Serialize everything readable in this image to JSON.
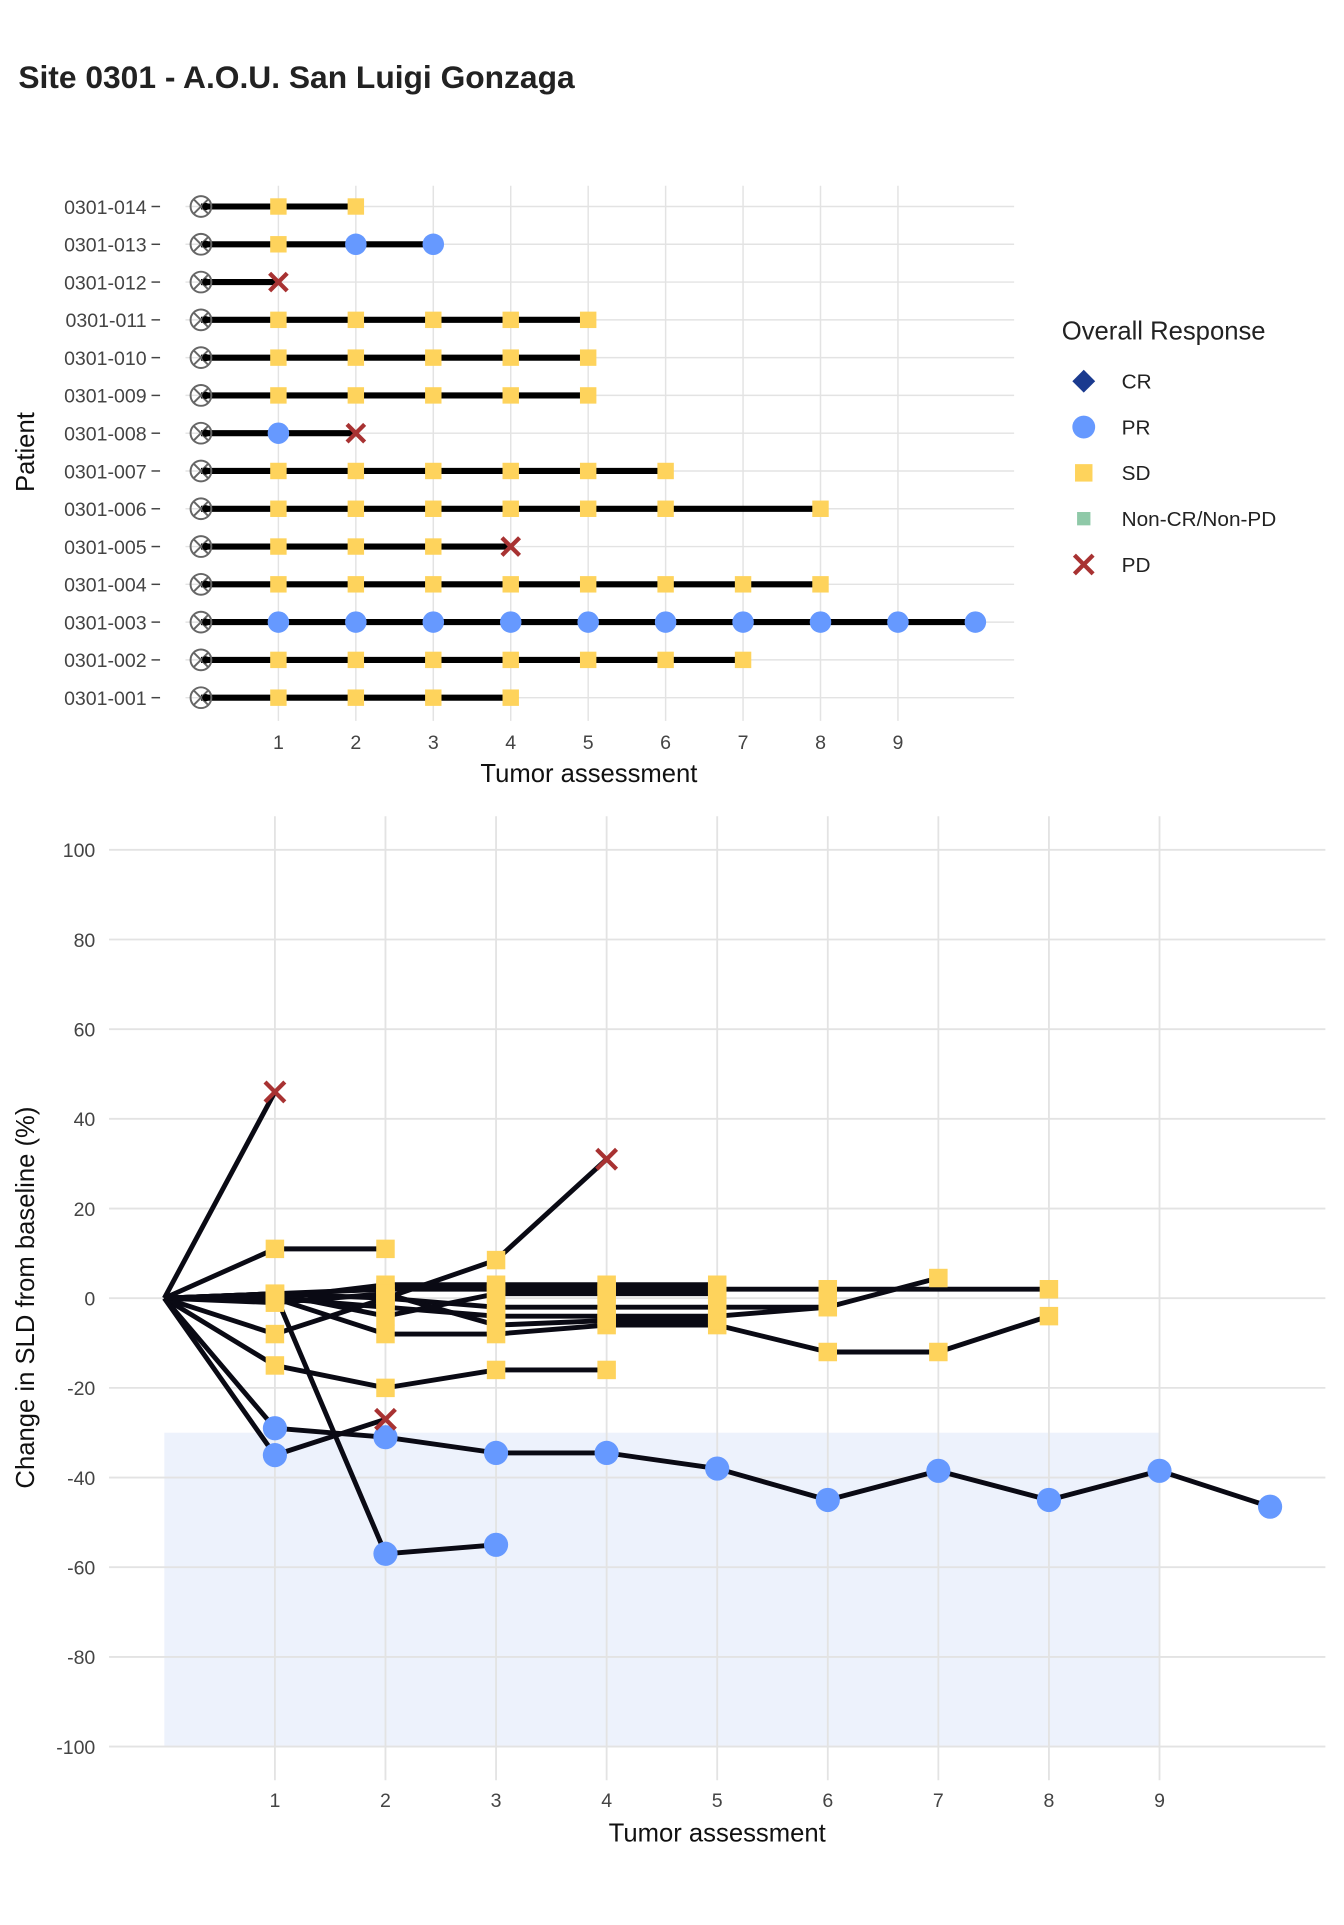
{
  "chart_data": [
    {
      "type": "swimmer",
      "title": "Site 0301 - A.O.U. San Luigi Gonzaga",
      "x_label": "Tumor assessment",
      "y_label": "Patient",
      "xlim": [
        -0.2,
        10.5
      ],
      "xticks": [
        1,
        2,
        3,
        4,
        5,
        6,
        7,
        8,
        9
      ],
      "grid": true,
      "baseline": 0,
      "bar_color": "#000000",
      "legend": {
        "title": "Overall Response",
        "position": "right",
        "items": [
          {
            "label": "CR",
            "shape": "diamond",
            "color": "#1a3a8f"
          },
          {
            "label": "PR",
            "shape": "circle",
            "color": "#6699ff"
          },
          {
            "label": "SD",
            "shape": "square",
            "color": "#fed35c"
          },
          {
            "label": "Non-CR/Non-PD",
            "shape": "square",
            "color": "#8fc9a8"
          },
          {
            "label": "PD",
            "shape": "cross",
            "color": "#a83232"
          }
        ]
      },
      "series": [
        {
          "name": "0301-001",
          "x": [
            1,
            2,
            3,
            4
          ],
          "responses": [
            "SD",
            "SD",
            "SD",
            "SD"
          ]
        },
        {
          "name": "0301-002",
          "x": [
            1,
            2,
            3,
            4,
            5,
            6,
            7
          ],
          "responses": [
            "SD",
            "SD",
            "SD",
            "SD",
            "SD",
            "SD",
            "SD"
          ]
        },
        {
          "name": "0301-003",
          "x": [
            1,
            2,
            3,
            4,
            5,
            6,
            7,
            8,
            9,
            10
          ],
          "responses": [
            "PR",
            "PR",
            "PR",
            "PR",
            "PR",
            "PR",
            "PR",
            "PR",
            "PR",
            "PR"
          ]
        },
        {
          "name": "0301-004",
          "x": [
            1,
            2,
            3,
            4,
            5,
            6,
            7,
            8
          ],
          "responses": [
            "SD",
            "SD",
            "SD",
            "SD",
            "SD",
            "SD",
            "SD",
            "SD"
          ]
        },
        {
          "name": "0301-005",
          "x": [
            1,
            2,
            3,
            4
          ],
          "responses": [
            "SD",
            "SD",
            "SD",
            "PD"
          ]
        },
        {
          "name": "0301-006",
          "x": [
            1,
            2,
            3,
            4,
            5,
            6,
            8
          ],
          "responses": [
            "SD",
            "SD",
            "SD",
            "SD",
            "SD",
            "SD",
            "SD"
          ]
        },
        {
          "name": "0301-007",
          "x": [
            1,
            2,
            3,
            4,
            5,
            6
          ],
          "responses": [
            "SD",
            "SD",
            "SD",
            "SD",
            "SD",
            "SD"
          ]
        },
        {
          "name": "0301-008",
          "x": [
            1,
            2
          ],
          "responses": [
            "PR",
            "PD"
          ]
        },
        {
          "name": "0301-009",
          "x": [
            1,
            2,
            3,
            4,
            5
          ],
          "responses": [
            "SD",
            "SD",
            "SD",
            "SD",
            "SD"
          ]
        },
        {
          "name": "0301-010",
          "x": [
            1,
            2,
            3,
            4,
            5
          ],
          "responses": [
            "SD",
            "SD",
            "SD",
            "SD",
            "SD"
          ]
        },
        {
          "name": "0301-011",
          "x": [
            1,
            2,
            3,
            4,
            5
          ],
          "responses": [
            "SD",
            "SD",
            "SD",
            "SD",
            "SD"
          ]
        },
        {
          "name": "0301-012",
          "x": [
            1
          ],
          "responses": [
            "PD"
          ]
        },
        {
          "name": "0301-013",
          "x": [
            1,
            2,
            3
          ],
          "responses": [
            "SD",
            "PR",
            "PR"
          ]
        },
        {
          "name": "0301-014",
          "x": [
            1,
            2
          ],
          "responses": [
            "SD",
            "SD"
          ]
        }
      ]
    },
    {
      "type": "spider",
      "x_label": "Tumor assessment",
      "y_label": "Change in SLD from baseline (%)",
      "xlim": [
        -0.5,
        10.5
      ],
      "xticks": [
        1,
        2,
        3,
        4,
        5,
        6,
        7,
        8,
        9
      ],
      "ylim": [
        -107.5,
        107.5
      ],
      "yticks": [
        -100,
        -80,
        -60,
        -40,
        -20,
        0,
        20,
        40,
        60,
        80,
        100
      ],
      "grid": true,
      "line_color": "#0a0a14",
      "shaded_region": {
        "xlim": [
          0,
          9
        ],
        "ylim": [
          -100,
          -30
        ],
        "color": "#edf2fc"
      },
      "series": [
        {
          "x": [
            0,
            1,
            2,
            3,
            4
          ],
          "values": [
            0,
            -15,
            -20,
            -16,
            -16
          ],
          "responses": [
            null,
            "SD",
            "SD",
            "SD",
            "SD"
          ]
        },
        {
          "x": [
            0,
            1,
            2,
            3,
            4,
            5,
            6,
            7
          ],
          "values": [
            0,
            1,
            0,
            -2,
            -2,
            -2,
            -2,
            4.5
          ],
          "responses": [
            null,
            "SD",
            "SD",
            "SD",
            "SD",
            "SD",
            "SD",
            "SD"
          ]
        },
        {
          "x": [
            0,
            1,
            2,
            3,
            4,
            5,
            6,
            7,
            8,
            9,
            10
          ],
          "values": [
            0,
            -29,
            -31,
            -34.5,
            -34.5,
            -38,
            -45,
            -38.5,
            -45,
            -38.5,
            -46.5
          ],
          "responses": [
            null,
            "PR",
            "PR",
            "PR",
            "PR",
            "PR",
            "PR",
            "PR",
            "PR",
            "PR",
            "PR"
          ]
        },
        {
          "x": [
            0,
            1,
            2,
            3,
            4,
            5,
            6,
            7,
            8
          ],
          "values": [
            0,
            0,
            -8,
            -8,
            -6,
            -6,
            -12,
            -12,
            -4
          ],
          "responses": [
            null,
            "SD",
            "SD",
            "SD",
            "SD",
            "SD",
            "SD",
            "SD",
            "SD"
          ]
        },
        {
          "x": [
            0,
            1,
            2,
            3,
            4
          ],
          "values": [
            0,
            -8,
            0,
            8.5,
            31
          ],
          "responses": [
            null,
            "SD",
            "SD",
            "SD",
            "PD"
          ]
        },
        {
          "x": [
            0,
            1,
            2,
            3,
            4,
            5,
            6,
            8
          ],
          "values": [
            0,
            1,
            2,
            2,
            2,
            2,
            2,
            2
          ],
          "responses": [
            null,
            "SD",
            "SD",
            "SD",
            "SD",
            "SD",
            "SD",
            "SD"
          ]
        },
        {
          "x": [
            0,
            1,
            2,
            3,
            4,
            5,
            6
          ],
          "values": [
            0,
            0,
            -2,
            -4,
            -4,
            -4,
            -2
          ],
          "responses": [
            null,
            "SD",
            "SD",
            "SD",
            "SD",
            "SD",
            "SD"
          ]
        },
        {
          "x": [
            0,
            1,
            2
          ],
          "values": [
            0,
            -35,
            -27
          ],
          "responses": [
            null,
            "PR",
            "PD"
          ]
        },
        {
          "x": [
            0,
            1,
            2,
            3,
            4,
            5
          ],
          "values": [
            0,
            1,
            -4,
            1,
            1,
            1
          ],
          "responses": [
            null,
            "SD",
            "SD",
            "SD",
            "SD",
            "SD"
          ]
        },
        {
          "x": [
            0,
            1,
            2,
            3,
            4,
            5
          ],
          "values": [
            0,
            0,
            3,
            3,
            3,
            3
          ],
          "responses": [
            null,
            "SD",
            "SD",
            "SD",
            "SD",
            "SD"
          ]
        },
        {
          "x": [
            0,
            1,
            2,
            3,
            4,
            5
          ],
          "values": [
            0,
            -1,
            1,
            -6,
            -5,
            -5
          ],
          "responses": [
            null,
            "SD",
            "SD",
            "SD",
            "SD",
            "SD"
          ]
        },
        {
          "x": [
            0,
            1
          ],
          "values": [
            0,
            46
          ],
          "responses": [
            null,
            "PD"
          ]
        },
        {
          "x": [
            0,
            1,
            2,
            3
          ],
          "values": [
            0,
            1,
            -57,
            -55
          ],
          "responses": [
            null,
            "SD",
            "PR",
            "PR"
          ]
        },
        {
          "x": [
            0,
            1,
            2
          ],
          "values": [
            0,
            11,
            11
          ],
          "responses": [
            null,
            "SD",
            "SD"
          ]
        }
      ]
    }
  ]
}
